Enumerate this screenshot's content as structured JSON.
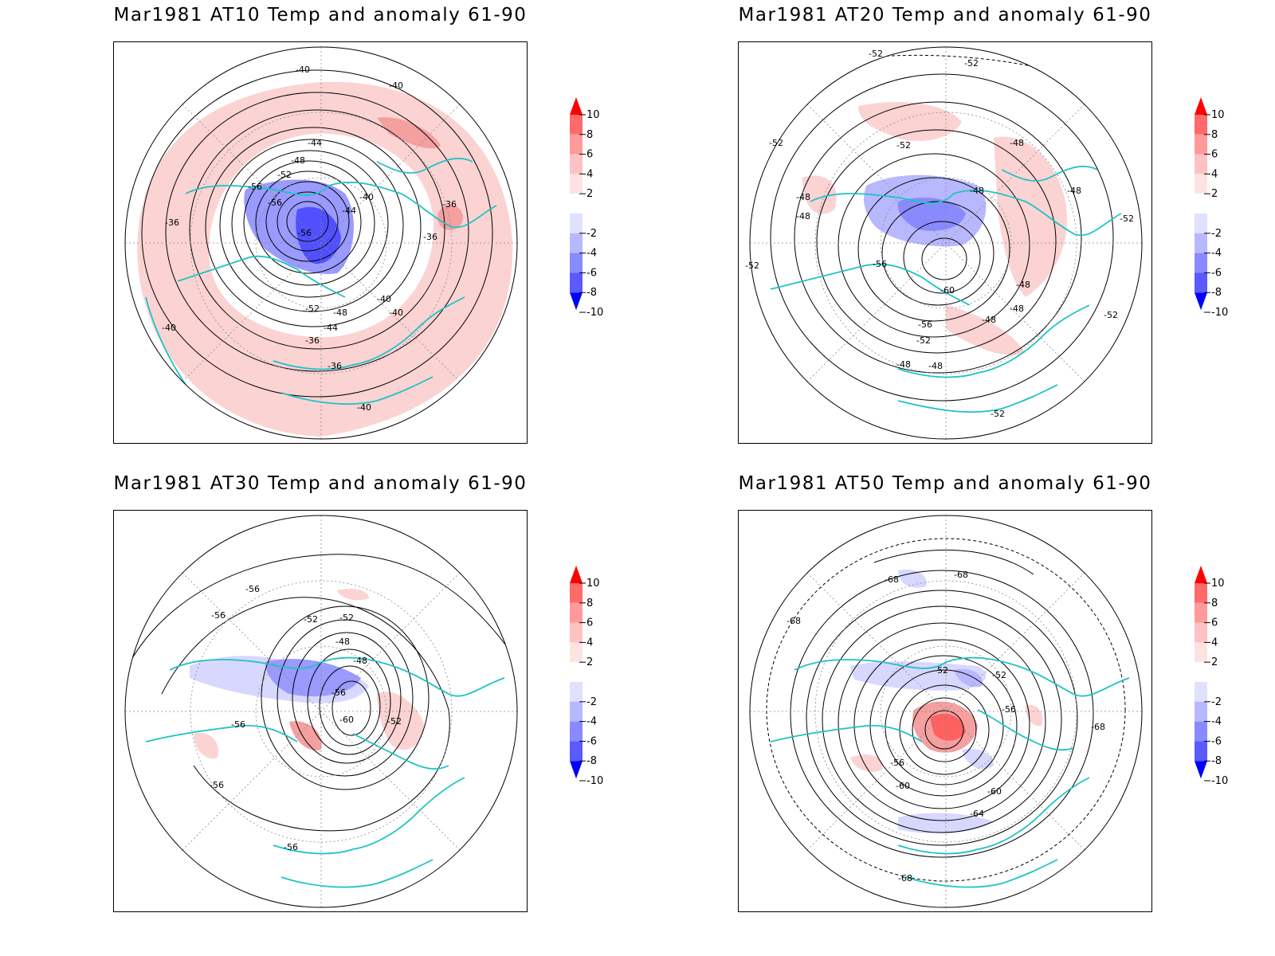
{
  "panels": [
    {
      "id": "at10",
      "title": "Mar1981 AT10 Temp and anomaly 61-90",
      "contour_labels": [
        "-40",
        "-40",
        "-44",
        "-48",
        "-52",
        "-56",
        "-56",
        "-56",
        "-40",
        "-44",
        "-36",
        "-36",
        "-36",
        "-52",
        "-48",
        "-40",
        "-44",
        "-36",
        "-36",
        "-40",
        "-40",
        "-40"
      ]
    },
    {
      "id": "at20",
      "title": "Mar1981 AT20 Temp and anomaly 61-90",
      "contour_labels": [
        "-52",
        "-52",
        "-52",
        "-52",
        "-48",
        "-48",
        "-48",
        "-48",
        "-48",
        "-52",
        "-56",
        "-60",
        "-56",
        "-52",
        "-48",
        "-48",
        "-48",
        "-48",
        "-48",
        "-52",
        "-52",
        "-52"
      ]
    },
    {
      "id": "at30",
      "title": "Mar1981 AT30 Temp and anomaly 61-90",
      "contour_labels": [
        "-56",
        "-56",
        "-52",
        "-52",
        "-48",
        "-48",
        "-56",
        "-60",
        "-52",
        "-56",
        "-56",
        "-56"
      ]
    },
    {
      "id": "at50",
      "title": "Mar1981 AT50 Temp and anomaly 61-90",
      "contour_labels": [
        "-68",
        "-68",
        "-68",
        "-52",
        "-52",
        "-56",
        "-56",
        "-60",
        "-60",
        "-64",
        "-68",
        "-68"
      ]
    }
  ],
  "colorbar": {
    "labels": [
      "10",
      "8",
      "6",
      "4",
      "2",
      "-2",
      "-4",
      "-6",
      "-8",
      "-10"
    ],
    "colors": [
      "#ff0000",
      "#ff6a6a",
      "#ff9a9a",
      "#ffc2c2",
      "#ffe2e2",
      "#ffffff",
      "#e0e0ff",
      "#b8b8ff",
      "#8a8aff",
      "#5a5aff",
      "#0000ff"
    ]
  }
}
